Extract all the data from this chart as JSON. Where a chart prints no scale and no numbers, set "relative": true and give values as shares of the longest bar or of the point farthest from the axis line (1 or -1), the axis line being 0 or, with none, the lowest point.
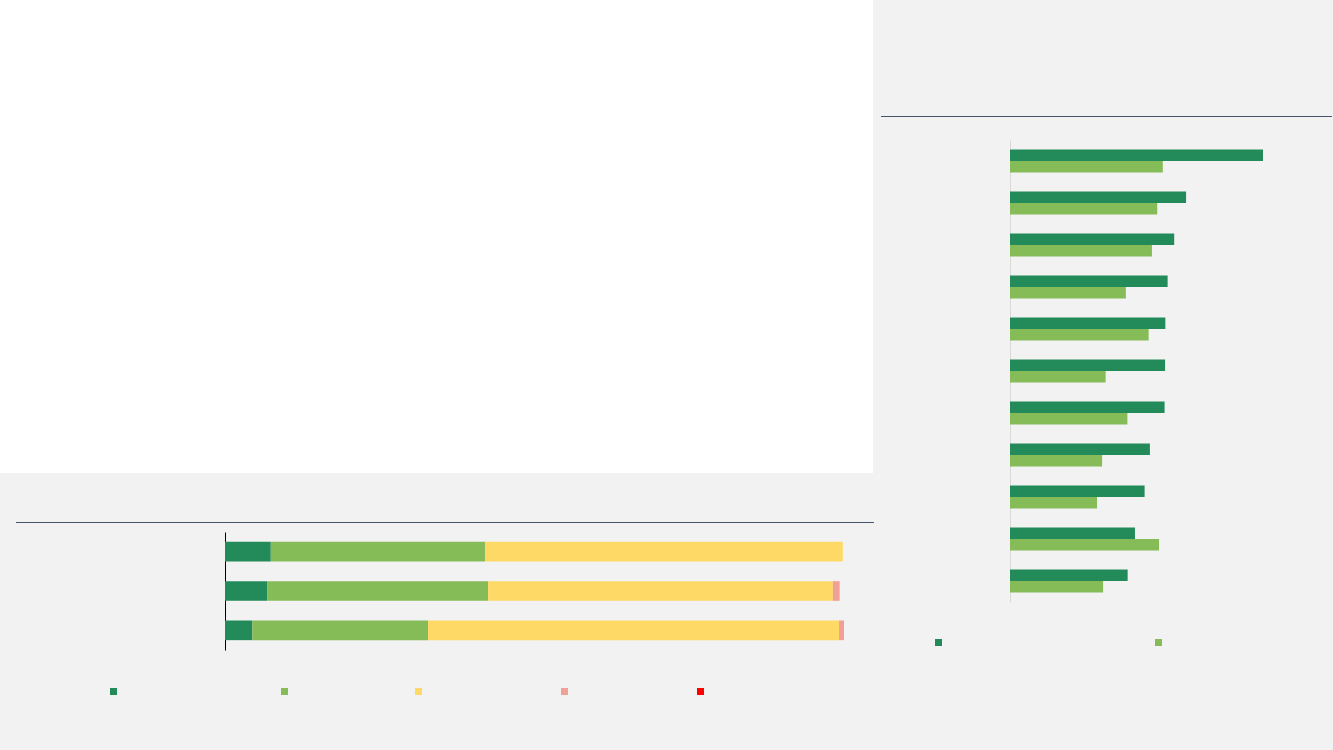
{
  "chart_data": [
    {
      "type": "bar",
      "orientation": "horizontal",
      "stacked": true,
      "relative": true,
      "categories": [
        null,
        null,
        null
      ],
      "series": [
        {
          "color": "#238b5a",
          "values": [
            0.074,
            0.068,
            0.044
          ]
        },
        {
          "color": "#86bc58",
          "values": [
            0.346,
            0.357,
            0.284
          ]
        },
        {
          "color": "#ffd966",
          "values": [
            0.578,
            0.557,
            0.664
          ]
        },
        {
          "color": "#f0a096",
          "values": [
            0,
            0.011,
            0.008
          ]
        },
        {
          "color": "#ff0000",
          "values": [
            0,
            0,
            0
          ]
        }
      ]
    },
    {
      "type": "bar",
      "orientation": "horizontal",
      "relative": true,
      "categories": [
        null,
        null,
        null,
        null,
        null,
        null,
        null,
        null,
        null,
        null,
        null
      ],
      "series": [
        {
          "color": "#238b5a",
          "values": [
            1,
            0.696,
            0.649,
            0.623,
            0.614,
            0.613,
            0.611,
            0.553,
            0.532,
            0.494,
            0.465
          ]
        },
        {
          "color": "#86bc58",
          "values": [
            0.604,
            0.582,
            0.561,
            0.458,
            0.548,
            0.378,
            0.464,
            0.364,
            0.344,
            0.589,
            0.368
          ]
        }
      ]
    }
  ]
}
